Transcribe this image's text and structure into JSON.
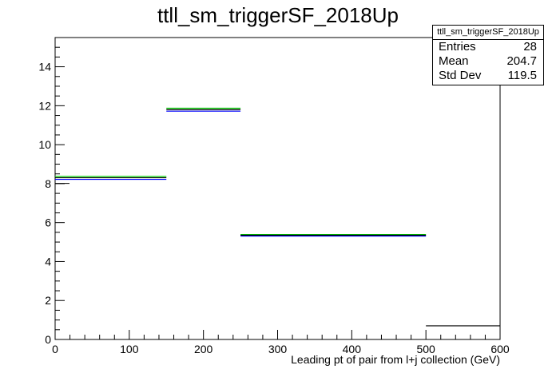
{
  "chart_data": {
    "type": "histogram",
    "title": "ttll_sm_triggerSF_2018Up",
    "xlabel": "Leading pt of pair from l+j collection (GeV)",
    "ylabel": "",
    "xlim": [
      0,
      600
    ],
    "ylim": [
      0,
      15.5
    ],
    "x_ticks": [
      0,
      100,
      200,
      300,
      400,
      500,
      600
    ],
    "y_ticks": [
      0,
      2,
      4,
      6,
      8,
      10,
      12,
      14
    ],
    "bins": [
      {
        "x0": 0,
        "x1": 150,
        "y": 8.3
      },
      {
        "x0": 150,
        "x1": 250,
        "y": 11.8
      },
      {
        "x0": 250,
        "x1": 500,
        "y": 5.35
      },
      {
        "x0": 500,
        "x1": 600,
        "y": 0.7
      }
    ],
    "bands": [
      {
        "color": "#00cc00",
        "bins": [
          {
            "x0": 0,
            "x1": 150,
            "y": 8.37
          },
          {
            "x0": 150,
            "x1": 250,
            "y": 11.87
          },
          {
            "x0": 250,
            "x1": 500,
            "y": 5.39
          }
        ]
      },
      {
        "color": "#0000ff",
        "bins": [
          {
            "x0": 0,
            "x1": 150,
            "y": 8.22
          },
          {
            "x0": 150,
            "x1": 250,
            "y": 11.72
          },
          {
            "x0": 250,
            "x1": 500,
            "y": 5.31
          }
        ]
      }
    ],
    "stats": {
      "name": "ttll_sm_triggerSF_2018Up",
      "entries_label": "Entries",
      "entries": "28",
      "mean_label": "Mean",
      "mean": "204.7",
      "std_label": "Std Dev",
      "std": "119.5"
    }
  }
}
